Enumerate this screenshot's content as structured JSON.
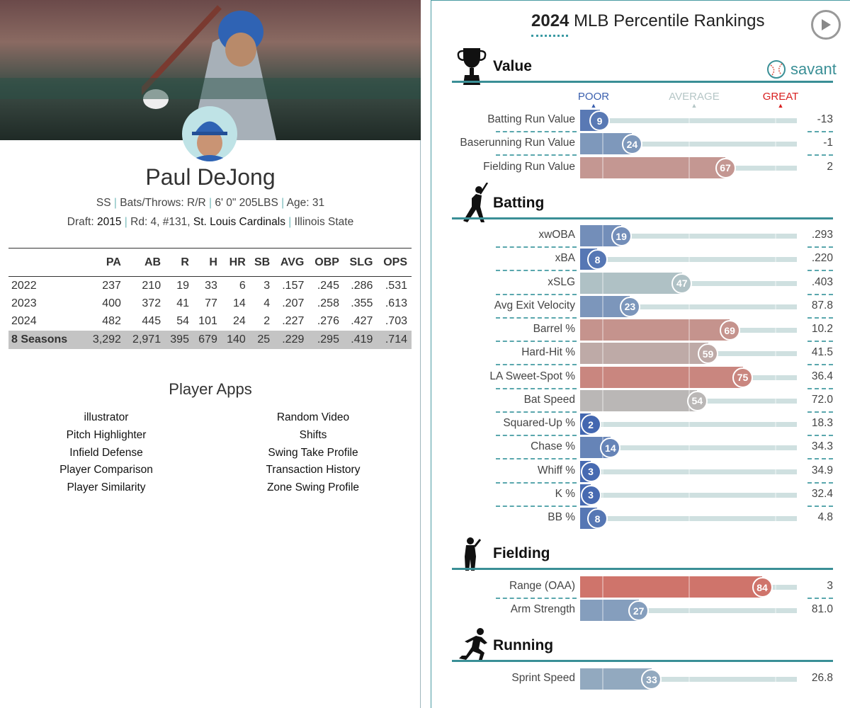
{
  "player": {
    "name": "Paul DeJong",
    "bio_line": [
      "SS",
      "Bats/Throws: R/R",
      "6' 0\" 205LBS",
      "Age: 31"
    ],
    "draft_label": "Draft:",
    "draft_year": "2015",
    "draft_pick": "Rd: 4, #131,",
    "draft_team": "St. Louis Cardinals",
    "school": "Illinois State"
  },
  "stats": {
    "headers": [
      "",
      "PA",
      "AB",
      "R",
      "H",
      "HR",
      "SB",
      "AVG",
      "OBP",
      "SLG",
      "OPS"
    ],
    "rows": [
      [
        "2022",
        "237",
        "210",
        "19",
        "33",
        "6",
        "3",
        ".157",
        ".245",
        ".286",
        ".531"
      ],
      [
        "2023",
        "400",
        "372",
        "41",
        "77",
        "14",
        "4",
        ".207",
        ".258",
        ".355",
        ".613"
      ],
      [
        "2024",
        "482",
        "445",
        "54",
        "101",
        "24",
        "2",
        ".227",
        ".276",
        ".427",
        ".703"
      ]
    ],
    "total": [
      "8 Seasons",
      "3,292",
      "2,971",
      "395",
      "679",
      "140",
      "25",
      ".229",
      ".295",
      ".419",
      ".714"
    ]
  },
  "apps": {
    "title": "Player Apps",
    "left": [
      "illustrator",
      "Pitch Highlighter",
      "Infield Defense",
      "Player Comparison",
      "Player Similarity"
    ],
    "right": [
      "Random Video",
      "Shifts",
      "Swing Take Profile",
      "Transaction History",
      "Zone Swing Profile"
    ]
  },
  "rankings": {
    "title_year": "2024",
    "title_rest": " MLB Percentile Rankings",
    "brand": "savant",
    "legend": {
      "poor": "POOR",
      "average": "AVERAGE",
      "great": "GREAT"
    },
    "colors": {
      "poor": "#3a5fae",
      "average": "#b5c6c6",
      "great": "#d8574a",
      "accent": "#3a8f96"
    },
    "sections": [
      {
        "name": "Value",
        "icon": "trophy-icon",
        "rows": [
          {
            "label": "Batting Run Value",
            "pct": 9,
            "value": "-13"
          },
          {
            "label": "Baserunning Run Value",
            "pct": 24,
            "value": "-1"
          },
          {
            "label": "Fielding Run Value",
            "pct": 67,
            "value": "2"
          }
        ]
      },
      {
        "name": "Batting",
        "icon": "batter-icon",
        "rows": [
          {
            "label": "xwOBA",
            "pct": 19,
            "value": ".293"
          },
          {
            "label": "xBA",
            "pct": 8,
            "value": ".220"
          },
          {
            "label": "xSLG",
            "pct": 47,
            "value": ".403"
          },
          {
            "label": "Avg Exit Velocity",
            "pct": 23,
            "value": "87.8"
          },
          {
            "label": "Barrel %",
            "pct": 69,
            "value": "10.2"
          },
          {
            "label": "Hard-Hit %",
            "pct": 59,
            "value": "41.5"
          },
          {
            "label": "LA Sweet-Spot %",
            "pct": 75,
            "value": "36.4"
          },
          {
            "label": "Bat Speed",
            "pct": 54,
            "value": "72.0"
          },
          {
            "label": "Squared-Up %",
            "pct": 2,
            "value": "18.3"
          },
          {
            "label": "Chase %",
            "pct": 14,
            "value": "34.3"
          },
          {
            "label": "Whiff %",
            "pct": 3,
            "value": "34.9"
          },
          {
            "label": "K %",
            "pct": 3,
            "value": "32.4"
          },
          {
            "label": "BB %",
            "pct": 8,
            "value": "4.8"
          }
        ]
      },
      {
        "name": "Fielding",
        "icon": "fielder-icon",
        "rows": [
          {
            "label": "Range (OAA)",
            "pct": 84,
            "value": "3"
          },
          {
            "label": "Arm Strength",
            "pct": 27,
            "value": "81.0"
          }
        ]
      },
      {
        "name": "Running",
        "icon": "runner-icon",
        "rows": [
          {
            "label": "Sprint Speed",
            "pct": 33,
            "value": "26.8"
          }
        ]
      }
    ]
  }
}
